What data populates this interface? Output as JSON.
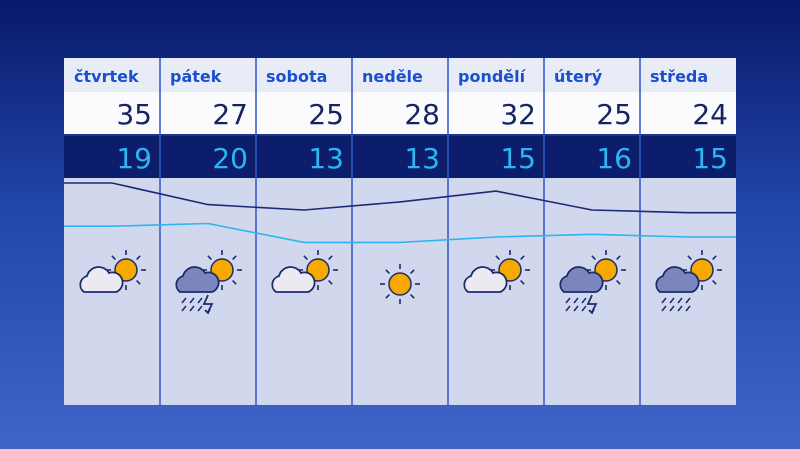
{
  "days": [
    {
      "name": "čtvrtek",
      "high": 35,
      "low": 19
    },
    {
      "name": "pátek",
      "high": 27,
      "low": 20
    },
    {
      "name": "sobota",
      "high": 25,
      "low": 13
    },
    {
      "name": "neděle",
      "high": 28,
      "low": 13
    },
    {
      "name": "pondělí",
      "high": 32,
      "low": 15
    },
    {
      "name": "úterý",
      "high": 25,
      "low": 16
    },
    {
      "name": "středa",
      "high": 24,
      "low": 15
    }
  ]
}
